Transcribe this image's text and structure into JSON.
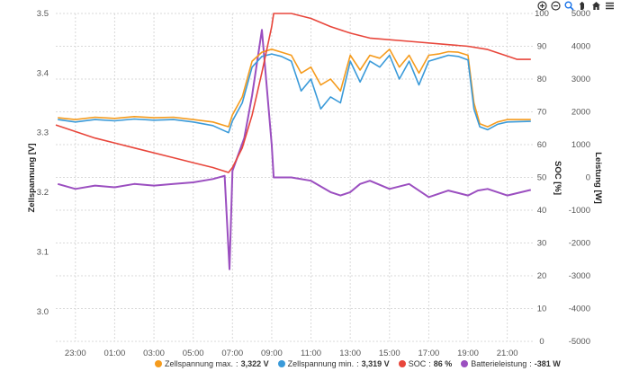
{
  "toolbar": {
    "icons": [
      "zoom-in-icon",
      "zoom-out-icon",
      "zoom-select-icon",
      "pan-hand-icon",
      "home-icon",
      "menu-icon"
    ]
  },
  "chart_data": {
    "type": "line",
    "xlabel": "",
    "x_ticks": [
      "23:00",
      "01:00",
      "03:00",
      "05:00",
      "07:00",
      "09:00",
      "11:00",
      "13:00",
      "15:00",
      "17:00",
      "19:00",
      "21:00"
    ],
    "x_range_hours": [
      22.0,
      46.3
    ],
    "grid": true,
    "legend_position": "bottom",
    "y_axes": [
      {
        "id": "voltage",
        "title": "Zellspannung [V]",
        "side": "left",
        "range": [
          2.95,
          3.5
        ],
        "ticks": [
          "3.0",
          "3.1",
          "3.2",
          "3.3",
          "3.4",
          "3.5"
        ]
      },
      {
        "id": "soc",
        "title": "SOC [%]",
        "side": "right",
        "range": [
          0,
          100
        ],
        "ticks": [
          "0",
          "10",
          "20",
          "30",
          "40",
          "50",
          "60",
          "70",
          "80",
          "90",
          "100"
        ]
      },
      {
        "id": "power",
        "title": "Leistung [W]",
        "side": "right",
        "range": [
          -5000,
          5000
        ],
        "ticks": [
          "-5000",
          "-4000",
          "-3000",
          "-2000",
          "-1000",
          "0",
          "1000",
          "2000",
          "3000",
          "4000",
          "5000"
        ]
      }
    ],
    "series": [
      {
        "name": "Zellspannung max.",
        "legend_value": "3,322 V",
        "color": "#f59b1d",
        "axis": "voltage",
        "x": [
          22.1,
          23.0,
          24.0,
          25.0,
          26.0,
          27.0,
          28.0,
          29.0,
          30.0,
          30.8,
          31.0,
          31.5,
          32.0,
          32.5,
          33.0,
          33.5,
          34.0,
          34.5,
          35.0,
          35.5,
          36.0,
          36.5,
          37.0,
          37.5,
          38.0,
          38.5,
          39.0,
          39.5,
          40.0,
          40.5,
          41.0,
          41.5,
          42.0,
          42.5,
          43.0,
          43.3,
          43.6,
          44.0,
          44.5,
          45.0,
          46.2
        ],
        "y": [
          3.325,
          3.322,
          3.326,
          3.324,
          3.327,
          3.325,
          3.326,
          3.322,
          3.318,
          3.31,
          3.33,
          3.36,
          3.42,
          3.435,
          3.44,
          3.435,
          3.43,
          3.4,
          3.41,
          3.38,
          3.39,
          3.37,
          3.43,
          3.405,
          3.43,
          3.425,
          3.44,
          3.41,
          3.43,
          3.4,
          3.43,
          3.432,
          3.436,
          3.435,
          3.43,
          3.35,
          3.315,
          3.31,
          3.318,
          3.322,
          3.322
        ]
      },
      {
        "name": "Zellspannung min.",
        "legend_value": "3,319 V",
        "color": "#3a9ad9",
        "axis": "voltage",
        "x": [
          22.1,
          23.0,
          24.0,
          25.0,
          26.0,
          27.0,
          28.0,
          29.0,
          30.0,
          30.8,
          31.0,
          31.5,
          32.0,
          32.5,
          33.0,
          33.5,
          34.0,
          34.5,
          35.0,
          35.5,
          36.0,
          36.5,
          37.0,
          37.5,
          38.0,
          38.5,
          39.0,
          39.5,
          40.0,
          40.5,
          41.0,
          41.5,
          42.0,
          42.5,
          43.0,
          43.3,
          43.6,
          44.0,
          44.5,
          45.0,
          46.2
        ],
        "y": [
          3.322,
          3.318,
          3.322,
          3.32,
          3.323,
          3.321,
          3.322,
          3.318,
          3.312,
          3.3,
          3.32,
          3.35,
          3.41,
          3.428,
          3.432,
          3.428,
          3.42,
          3.37,
          3.39,
          3.34,
          3.36,
          3.35,
          3.42,
          3.385,
          3.42,
          3.41,
          3.43,
          3.39,
          3.42,
          3.38,
          3.42,
          3.425,
          3.43,
          3.428,
          3.422,
          3.34,
          3.31,
          3.305,
          3.314,
          3.318,
          3.319
        ]
      },
      {
        "name": "SOC",
        "legend_value": "86 %",
        "color": "#e8463b",
        "axis": "soc",
        "x": [
          22.0,
          24.0,
          26.0,
          28.0,
          29.0,
          30.0,
          30.8,
          31.0,
          31.5,
          32.0,
          32.5,
          33.0,
          33.1,
          34.0,
          35.0,
          36.0,
          37.0,
          38.0,
          40.0,
          42.0,
          43.0,
          44.0,
          45.0,
          45.5,
          46.2
        ],
        "y": [
          66,
          62,
          59,
          56,
          54.5,
          53,
          51.5,
          53,
          59,
          69,
          82,
          96,
          100,
          100,
          98.5,
          96,
          94,
          92.5,
          91.5,
          90.5,
          90,
          89,
          87,
          86,
          86
        ]
      },
      {
        "name": "Batterieleistung",
        "legend_value": "-381 W",
        "color": "#9b4fc0",
        "axis": "power",
        "x": [
          22.1,
          23.0,
          24.0,
          25.0,
          26.0,
          27.0,
          28.0,
          29.0,
          30.0,
          30.6,
          30.85,
          31.0,
          31.3,
          31.6,
          32.0,
          32.5,
          33.0,
          33.1,
          34.0,
          35.0,
          36.0,
          36.5,
          37.0,
          37.5,
          38.0,
          39.0,
          40.0,
          41.0,
          42.0,
          43.0,
          43.5,
          44.0,
          45.0,
          46.2
        ],
        "y": [
          -200,
          -350,
          -250,
          -300,
          -200,
          -250,
          -200,
          -150,
          -50,
          50,
          -2800,
          200,
          700,
          1200,
          2500,
          4500,
          1000,
          0,
          0,
          -100,
          -450,
          -550,
          -450,
          -200,
          -100,
          -350,
          -200,
          -600,
          -400,
          -550,
          -400,
          -350,
          -550,
          -381
        ]
      }
    ]
  }
}
